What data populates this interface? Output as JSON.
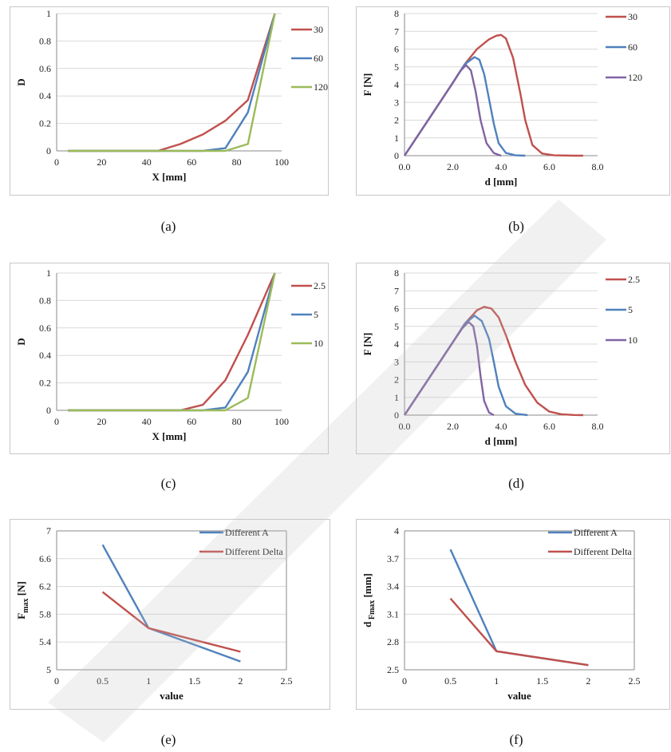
{
  "captions": [
    "(a)",
    "(b)",
    "(c)",
    "(d)",
    "(e)",
    "(f)"
  ],
  "chart_data": [
    {
      "type": "line",
      "xlabel": "X [mm]",
      "ylabel": "D",
      "xlim": [
        0,
        100
      ],
      "ylim": [
        0,
        1
      ],
      "xticks": [
        "0",
        "20",
        "40",
        "60",
        "80",
        "100"
      ],
      "yticks": [
        "0",
        "0.2",
        "0.4",
        "0.6",
        "0.8",
        "1"
      ],
      "grid": true,
      "legend_position": "right",
      "series": [
        {
          "name": "30",
          "color": "#c0504d",
          "x": [
            5,
            15,
            25,
            35,
            45,
            55,
            65,
            75,
            85,
            97
          ],
          "y": [
            0,
            0,
            0,
            0,
            0,
            0.05,
            0.12,
            0.22,
            0.37,
            1.0
          ]
        },
        {
          "name": "60",
          "color": "#4f81bd",
          "x": [
            5,
            15,
            25,
            35,
            45,
            55,
            65,
            75,
            85,
            97
          ],
          "y": [
            0,
            0,
            0,
            0,
            0,
            0,
            0,
            0.02,
            0.28,
            1.0
          ]
        },
        {
          "name": "120",
          "color": "#9bbb59",
          "x": [
            5,
            15,
            25,
            35,
            45,
            55,
            65,
            75,
            85,
            97
          ],
          "y": [
            0,
            0,
            0,
            0,
            0,
            0,
            0,
            0,
            0.05,
            1.0
          ]
        }
      ]
    },
    {
      "type": "line",
      "xlabel": "d [mm]",
      "ylabel": "F [N]",
      "xlim": [
        0,
        8
      ],
      "ylim": [
        0,
        8
      ],
      "xticks": [
        "0.0",
        "2.0",
        "4.0",
        "6.0",
        "8.0"
      ],
      "yticks": [
        "0",
        "1",
        "2",
        "3",
        "4",
        "5",
        "6",
        "7",
        "8"
      ],
      "grid": true,
      "legend_position": "right",
      "series": [
        {
          "name": "30",
          "color": "#c0504d",
          "x": [
            0,
            1,
            2,
            2.5,
            3,
            3.5,
            3.8,
            4.0,
            4.2,
            4.5,
            4.8,
            5.0,
            5.3,
            5.7,
            6.2,
            7.0,
            7.4
          ],
          "y": [
            0,
            2.05,
            4.1,
            5.15,
            6.0,
            6.55,
            6.75,
            6.8,
            6.6,
            5.5,
            3.5,
            2.0,
            0.6,
            0.12,
            0.02,
            0,
            0
          ]
        },
        {
          "name": "60",
          "color": "#4f81bd",
          "x": [
            0,
            1,
            2,
            2.5,
            2.9,
            3.1,
            3.3,
            3.5,
            3.7,
            3.9,
            4.2,
            4.6,
            5.0
          ],
          "y": [
            0,
            2.05,
            4.1,
            5.15,
            5.55,
            5.4,
            4.6,
            3.2,
            1.8,
            0.7,
            0.15,
            0.02,
            0
          ]
        },
        {
          "name": "120",
          "color": "#8064a2",
          "x": [
            0,
            1,
            2,
            2.3,
            2.55,
            2.75,
            2.95,
            3.15,
            3.4,
            3.7,
            4.0
          ],
          "y": [
            0,
            2.05,
            4.1,
            4.75,
            5.1,
            4.8,
            3.6,
            2.0,
            0.7,
            0.15,
            0
          ]
        }
      ]
    },
    {
      "type": "line",
      "xlabel": "X [mm]",
      "ylabel": "D",
      "xlim": [
        0,
        100
      ],
      "ylim": [
        0,
        1
      ],
      "xticks": [
        "0",
        "20",
        "40",
        "60",
        "80",
        "100"
      ],
      "yticks": [
        "0",
        "0.2",
        "0.4",
        "0.6",
        "0.8",
        "1"
      ],
      "grid": true,
      "legend_position": "right",
      "series": [
        {
          "name": "2.5",
          "color": "#c0504d",
          "x": [
            5,
            15,
            25,
            35,
            45,
            55,
            65,
            75,
            85,
            97
          ],
          "y": [
            0,
            0,
            0,
            0,
            0,
            0,
            0.04,
            0.22,
            0.55,
            1.0
          ]
        },
        {
          "name": "5",
          "color": "#4f81bd",
          "x": [
            5,
            15,
            25,
            35,
            45,
            55,
            65,
            75,
            85,
            97
          ],
          "y": [
            0,
            0,
            0,
            0,
            0,
            0,
            0,
            0.02,
            0.28,
            1.0
          ]
        },
        {
          "name": "10",
          "color": "#9bbb59",
          "x": [
            5,
            15,
            25,
            35,
            45,
            55,
            65,
            75,
            85,
            97
          ],
          "y": [
            0,
            0,
            0,
            0,
            0,
            0,
            0,
            0,
            0.09,
            1.0
          ]
        }
      ]
    },
    {
      "type": "line",
      "xlabel": "d [mm]",
      "ylabel": "F [N]",
      "xlim": [
        0,
        8
      ],
      "ylim": [
        0,
        8
      ],
      "xticks": [
        "0.0",
        "2.0",
        "4.0",
        "6.0",
        "8.0"
      ],
      "yticks": [
        "0",
        "1",
        "2",
        "3",
        "4",
        "5",
        "6",
        "7",
        "8"
      ],
      "grid": true,
      "legend_position": "right",
      "series": [
        {
          "name": "2.5",
          "color": "#c0504d",
          "x": [
            0,
            1,
            2,
            2.5,
            3.0,
            3.3,
            3.6,
            3.9,
            4.2,
            4.6,
            5.0,
            5.5,
            6.0,
            6.5,
            7.0,
            7.4
          ],
          "y": [
            0,
            2.05,
            4.1,
            5.15,
            5.9,
            6.1,
            6.0,
            5.5,
            4.5,
            3.0,
            1.7,
            0.7,
            0.2,
            0.05,
            0.01,
            0
          ]
        },
        {
          "name": "5",
          "color": "#4f81bd",
          "x": [
            0,
            1,
            2,
            2.5,
            2.9,
            3.2,
            3.5,
            3.7,
            3.9,
            4.2,
            4.6,
            5.1
          ],
          "y": [
            0,
            2.05,
            4.1,
            5.15,
            5.6,
            5.3,
            4.3,
            3.0,
            1.6,
            0.5,
            0.08,
            0
          ]
        },
        {
          "name": "10",
          "color": "#8064a2",
          "x": [
            0,
            1,
            2,
            2.4,
            2.65,
            2.85,
            3.0,
            3.15,
            3.3,
            3.5,
            3.7
          ],
          "y": [
            0,
            2.05,
            4.1,
            4.9,
            5.25,
            5.0,
            3.9,
            2.2,
            0.8,
            0.15,
            0
          ]
        }
      ]
    },
    {
      "type": "line",
      "xlabel": "value",
      "ylabel": "F",
      "ylabel_sub": "max",
      "ylabel_suffix": " [N]",
      "xlim": [
        0,
        2.5
      ],
      "ylim": [
        5,
        7
      ],
      "xticks": [
        "0",
        "0.5",
        "1",
        "1.5",
        "2",
        "2.5"
      ],
      "yticks": [
        "5",
        "5.4",
        "5.8",
        "6.2",
        "6.6",
        "7"
      ],
      "grid": true,
      "legend_position": "top-right",
      "series": [
        {
          "name": "Different A",
          "color": "#4f81bd",
          "x": [
            0.5,
            1,
            2
          ],
          "y": [
            6.8,
            5.6,
            5.12
          ]
        },
        {
          "name": "Different Delta",
          "color": "#c0504d",
          "x": [
            0.5,
            1,
            2
          ],
          "y": [
            6.12,
            5.6,
            5.26
          ]
        }
      ]
    },
    {
      "type": "line",
      "xlabel": "value",
      "ylabel": "d",
      "ylabel_sub": " Fmax",
      "ylabel_suffix": " [mm]",
      "xlim": [
        0,
        2.5
      ],
      "ylim": [
        2.5,
        4
      ],
      "xticks": [
        "0",
        "0.5",
        "1",
        "1.5",
        "2",
        "2.5"
      ],
      "yticks": [
        "2.5",
        "2.8",
        "3.1",
        "3.4",
        "3.7",
        "4"
      ],
      "grid": true,
      "legend_position": "top-right",
      "series": [
        {
          "name": "Different A",
          "color": "#4f81bd",
          "x": [
            0.5,
            1,
            2
          ],
          "y": [
            3.8,
            2.7,
            2.55
          ]
        },
        {
          "name": "Different Delta",
          "color": "#c0504d",
          "x": [
            0.5,
            1,
            2
          ],
          "y": [
            3.27,
            2.7,
            2.55
          ]
        }
      ]
    }
  ]
}
